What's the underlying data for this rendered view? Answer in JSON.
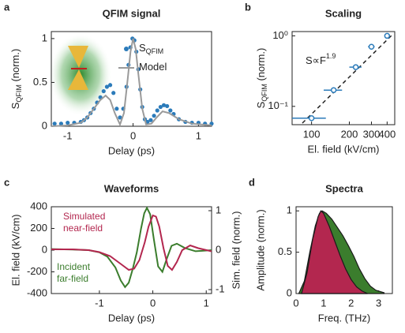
{
  "chart_data": [
    {
      "panel": "a",
      "type": "line",
      "title": "QFIM signal",
      "xlabel": "Delay (ps)",
      "ylabel": {
        "text": "S",
        "sub": "QFIM",
        "rest": " (norm.)"
      },
      "xlim": [
        -1.25,
        1.2
      ],
      "xticks": [
        -1,
        0,
        1
      ],
      "ylim": [
        0,
        1.08
      ],
      "yticks": [
        0,
        0.5,
        1
      ],
      "legend": "upper right",
      "series": [
        {
          "name": "S",
          "name_sub": "QFIM",
          "color": "#2b7bba",
          "style": "markers",
          "x": [
            -1.2,
            -1.1,
            -1.0,
            -0.9,
            -0.8,
            -0.75,
            -0.7,
            -0.65,
            -0.6,
            -0.55,
            -0.5,
            -0.45,
            -0.4,
            -0.35,
            -0.3,
            -0.25,
            -0.2,
            -0.15,
            -0.1,
            -0.07,
            -0.04,
            -0.01,
            0.02,
            0.05,
            0.08,
            0.11,
            0.14,
            0.18,
            0.22,
            0.27,
            0.32,
            0.37,
            0.42,
            0.47,
            0.52,
            0.57,
            0.62,
            0.7,
            0.8,
            0.9,
            1.0,
            1.1,
            1.2
          ],
          "values": [
            0.03,
            0.03,
            0.04,
            0.04,
            0.05,
            0.07,
            0.1,
            0.15,
            0.2,
            0.27,
            0.33,
            0.4,
            0.45,
            0.47,
            0.38,
            0.2,
            0.1,
            0.2,
            0.45,
            0.7,
            0.9,
            1.0,
            0.98,
            0.85,
            0.65,
            0.42,
            0.22,
            0.08,
            0.05,
            0.07,
            0.12,
            0.18,
            0.22,
            0.24,
            0.23,
            0.18,
            0.14,
            0.08,
            0.05,
            0.04,
            0.04,
            0.03,
            0.03
          ]
        },
        {
          "name": "Model",
          "color": "#9a9a9a",
          "style": "line",
          "x": [
            -1.25,
            -1.0,
            -0.8,
            -0.7,
            -0.6,
            -0.5,
            -0.42,
            -0.35,
            -0.28,
            -0.2,
            -0.14,
            -0.08,
            -0.04,
            0,
            0.04,
            0.08,
            0.14,
            0.2,
            0.28,
            0.36,
            0.45,
            0.55,
            0.7,
            0.9,
            1.2
          ],
          "values": [
            0,
            0.01,
            0.04,
            0.1,
            0.2,
            0.3,
            0.35,
            0.3,
            0.15,
            0.02,
            0.15,
            0.55,
            0.85,
            1.0,
            0.88,
            0.6,
            0.2,
            0.02,
            0.03,
            0.1,
            0.17,
            0.15,
            0.08,
            0.03,
            0.01
          ]
        }
      ]
    },
    {
      "panel": "b",
      "type": "scatter",
      "title": "Scaling",
      "xlabel": "El. field (kV/cm)",
      "ylabel": {
        "text": "S",
        "sub": "QFIM",
        "rest": " (norm.)"
      },
      "xscale": "log",
      "yscale": "log",
      "xlim": [
        70,
        460
      ],
      "xticks": [
        100,
        200,
        300,
        400
      ],
      "ylim": [
        0.055,
        1.15
      ],
      "yticks": [
        {
          "value": 0.1,
          "label": "10⁻¹"
        },
        {
          "value": 1,
          "label": "10⁰"
        }
      ],
      "color": "#2b7bba",
      "annotation": {
        "text": "S∝F",
        "sup": "1.9"
      },
      "x": [
        100,
        150,
        225,
        300,
        400
      ],
      "values": [
        0.068,
        0.17,
        0.36,
        0.7,
        1.0
      ],
      "xerr": [
        30,
        25,
        25,
        18,
        15
      ]
    },
    {
      "panel": "c",
      "type": "line",
      "title": "Waveforms",
      "xlabel": "Delay (ps)",
      "ylabel": "El. field (kV/cm)",
      "y2label": "Sim. field (norm.)",
      "xlim": [
        -1.9,
        1.1
      ],
      "xticks": [
        -1,
        0,
        1
      ],
      "ylim": [
        -400,
        400
      ],
      "yticks": [
        -400,
        -200,
        0,
        200,
        400
      ],
      "y2lim": [
        -1.1,
        1.1
      ],
      "y2ticks": [
        -1,
        0,
        1
      ],
      "series": [
        {
          "name": "Incident far-field",
          "color": "#3b7d2d",
          "style": "line",
          "x": [
            -1.9,
            -1.5,
            -1.2,
            -1.0,
            -0.85,
            -0.7,
            -0.6,
            -0.52,
            -0.45,
            -0.38,
            -0.3,
            -0.22,
            -0.16,
            -0.11,
            -0.05,
            0.02,
            0.1,
            0.18,
            0.26,
            0.35,
            0.45,
            0.6,
            0.8,
            1.1
          ],
          "values": [
            10,
            5,
            0,
            -20,
            -60,
            -160,
            -280,
            -340,
            -300,
            -180,
            -20,
            200,
            340,
            390,
            330,
            100,
            -150,
            -200,
            -80,
            40,
            60,
            20,
            -10,
            0
          ]
        },
        {
          "name": "Simulated near-field",
          "color": "#b3274f",
          "style": "line",
          "axis": "y2",
          "x": [
            -1.9,
            -1.5,
            -1.2,
            -1.0,
            -0.8,
            -0.6,
            -0.45,
            -0.35,
            -0.25,
            -0.15,
            -0.08,
            0,
            0.06,
            0.12,
            0.2,
            0.28,
            0.36,
            0.45,
            0.55,
            0.7,
            0.85,
            1.1
          ],
          "values": [
            0.02,
            0.02,
            0,
            -0.05,
            -0.15,
            -0.35,
            -0.5,
            -0.47,
            -0.25,
            0.2,
            0.6,
            0.88,
            0.85,
            0.6,
            0.05,
            -0.4,
            -0.5,
            -0.3,
            0,
            0.12,
            0.05,
            -0.03
          ]
        }
      ]
    },
    {
      "panel": "d",
      "type": "area",
      "title": "Spectra",
      "xlabel": "Freq. (THz)",
      "ylabel": "Amplitude (norm.)",
      "xlim": [
        0,
        3.5
      ],
      "xticks": [
        0,
        1,
        2,
        3
      ],
      "ylim": [
        0,
        1.05
      ],
      "yticks": [
        0,
        0.5,
        1
      ],
      "series": [
        {
          "color": "#3b7d2d",
          "x": [
            0.1,
            0.3,
            0.5,
            0.7,
            0.85,
            0.95,
            1.1,
            1.3,
            1.5,
            1.7,
            1.9,
            2.1,
            2.3,
            2.5,
            2.7,
            2.9,
            3.2
          ],
          "values": [
            0,
            0.15,
            0.5,
            0.82,
            0.97,
            1.0,
            0.97,
            0.9,
            0.8,
            0.7,
            0.58,
            0.45,
            0.3,
            0.18,
            0.09,
            0.04,
            0.01
          ]
        },
        {
          "color": "#b3274f",
          "x": [
            0.2,
            0.4,
            0.6,
            0.8,
            0.9,
            1.0,
            1.2,
            1.4,
            1.6,
            1.8,
            2.0,
            2.2,
            2.4,
            2.6
          ],
          "values": [
            0,
            0.25,
            0.65,
            0.93,
            1.0,
            0.97,
            0.82,
            0.64,
            0.46,
            0.3,
            0.17,
            0.08,
            0.03,
            0
          ]
        }
      ]
    }
  ]
}
